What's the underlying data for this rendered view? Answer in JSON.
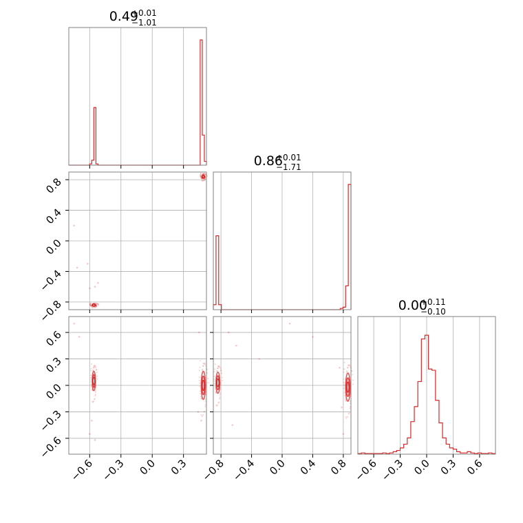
{
  "chart_data": {
    "type": "corner",
    "color": "#d62728",
    "grid": true,
    "parameters": [
      {
        "title": {
          "value": "0.49",
          "plus": "+0.01",
          "minus": "−1.01"
        },
        "xlim": [
          -0.8,
          0.52
        ],
        "xticks": [
          -0.6,
          -0.3,
          0.0,
          0.3
        ],
        "xtick_labels": [
          "−0.6",
          "−0.3",
          "0.0",
          "0.3"
        ],
        "hist": {
          "edges": [
            -0.8,
            -0.775,
            -0.75,
            -0.725,
            -0.7,
            -0.675,
            -0.65,
            -0.625,
            -0.6,
            -0.58,
            -0.56,
            -0.54,
            -0.52,
            -0.5,
            -0.48,
            -0.46,
            -0.44,
            -0.42,
            -0.2,
            0.0,
            0.2,
            0.4,
            0.44,
            0.46,
            0.48,
            0.5,
            0.52
          ],
          "values": [
            0,
            0,
            0,
            0,
            0,
            0,
            0,
            0,
            0.01,
            0.04,
            0.46,
            0.01,
            0,
            0,
            0,
            0,
            0,
            0,
            0,
            0,
            0,
            0,
            0,
            1.0,
            0.24,
            0.03
          ]
        },
        "samples_region": [
          [
            -0.56,
            -0.56
          ],
          [
            0.46,
            0.5
          ]
        ]
      },
      {
        "title": {
          "value": "0.86",
          "plus": "+0.01",
          "minus": "−1.71"
        },
        "xlim": [
          -0.9,
          0.9
        ],
        "xticks": [
          -0.8,
          -0.4,
          0.0,
          0.4,
          0.8
        ],
        "xtick_labels": [
          "−0.8",
          "−0.4",
          "0.0",
          "0.4",
          "0.8"
        ],
        "yticks": [
          -0.8,
          -0.4,
          0.0,
          0.4,
          0.8
        ],
        "ytick_labels": [
          "−0.8",
          "−0.4",
          "0.0",
          "0.4",
          "0.8"
        ],
        "hist": {
          "edges": [
            -0.9,
            -0.865,
            -0.83,
            -0.795,
            -0.76,
            -0.5,
            0.0,
            0.5,
            0.76,
            0.795,
            0.83,
            0.865,
            0.9
          ],
          "values": [
            0.04,
            0.59,
            0.04,
            0.0,
            0,
            0,
            0,
            0,
            0.01,
            0.02,
            0.19,
            1.0
          ]
        }
      },
      {
        "title": {
          "value": "0.00",
          "plus": "+0.11",
          "minus": "−0.10"
        },
        "xlim": [
          -0.78,
          0.78
        ],
        "xticks": [
          -0.6,
          -0.3,
          0.0,
          0.3,
          0.6
        ],
        "xtick_labels": [
          "−0.6",
          "−0.3",
          "0.0",
          "0.3",
          "0.6"
        ],
        "yticks": [
          -0.6,
          -0.3,
          0.0,
          0.3,
          0.6
        ],
        "ytick_labels": [
          "−0.6",
          "−0.3",
          "0.0",
          "0.3",
          "0.6"
        ],
        "hist": {
          "edges": [
            -0.78,
            -0.74,
            -0.7,
            -0.66,
            -0.62,
            -0.58,
            -0.54,
            -0.5,
            -0.46,
            -0.42,
            -0.38,
            -0.34,
            -0.3,
            -0.26,
            -0.22,
            -0.18,
            -0.14,
            -0.1,
            -0.06,
            -0.02,
            0.02,
            0.06,
            0.1,
            0.14,
            0.18,
            0.22,
            0.26,
            0.3,
            0.34,
            0.38,
            0.42,
            0.46,
            0.5,
            0.54,
            0.58,
            0.62,
            0.66,
            0.7,
            0.74,
            0.78
          ],
          "values": [
            0.005,
            0.01,
            0.005,
            0.005,
            0.005,
            0.005,
            0.005,
            0.01,
            0.005,
            0.01,
            0.02,
            0.03,
            0.05,
            0.08,
            0.13,
            0.26,
            0.38,
            0.58,
            0.92,
            0.95,
            0.68,
            0.67,
            0.43,
            0.25,
            0.13,
            0.08,
            0.05,
            0.04,
            0.02,
            0.01,
            0.01,
            0.02,
            0.01,
            0.005,
            0.01,
            0.005,
            0.005,
            0.01,
            0.005
          ]
        }
      }
    ],
    "contour_clusters": [
      {
        "panel": "1-0",
        "center": [
          0.49,
          0.84
        ],
        "radius": [
          0.015,
          0.025
        ]
      },
      {
        "panel": "1-0",
        "center": [
          -0.56,
          -0.84
        ],
        "radius": [
          0.02,
          0.015
        ]
      },
      {
        "panel": "2-0",
        "center": [
          -0.56,
          0.05
        ],
        "radius": [
          0.015,
          0.11
        ]
      },
      {
        "panel": "2-0",
        "center": [
          0.49,
          0.0
        ],
        "radius": [
          0.02,
          0.16
        ]
      },
      {
        "panel": "2-1",
        "center": [
          -0.84,
          0.03
        ],
        "radius": [
          0.025,
          0.12
        ]
      },
      {
        "panel": "2-1",
        "center": [
          0.86,
          -0.02
        ],
        "radius": [
          0.03,
          0.16
        ]
      }
    ],
    "outlier_points": [
      {
        "panel": "1-0",
        "points": [
          [
            -0.75,
            0.2
          ],
          [
            -0.72,
            -0.35
          ],
          [
            -0.6,
            -0.62
          ],
          [
            -0.55,
            -0.6
          ],
          [
            -0.52,
            -0.55
          ],
          [
            -0.62,
            -0.3
          ]
        ]
      },
      {
        "panel": "2-0",
        "points": [
          [
            -0.75,
            0.7
          ],
          [
            -0.7,
            0.55
          ],
          [
            -0.6,
            -0.55
          ],
          [
            -0.58,
            -0.4
          ],
          [
            0.45,
            0.6
          ],
          [
            0.47,
            -0.4
          ],
          [
            0.44,
            -0.3
          ],
          [
            -0.55,
            -0.62
          ]
        ]
      },
      {
        "panel": "2-1",
        "points": [
          [
            -0.7,
            0.6
          ],
          [
            -0.6,
            0.45
          ],
          [
            -0.3,
            0.3
          ],
          [
            0.1,
            0.7
          ],
          [
            0.4,
            0.55
          ],
          [
            0.75,
            0.2
          ],
          [
            0.78,
            -0.25
          ],
          [
            -0.65,
            -0.45
          ],
          [
            0.8,
            -0.55
          ]
        ]
      }
    ]
  }
}
